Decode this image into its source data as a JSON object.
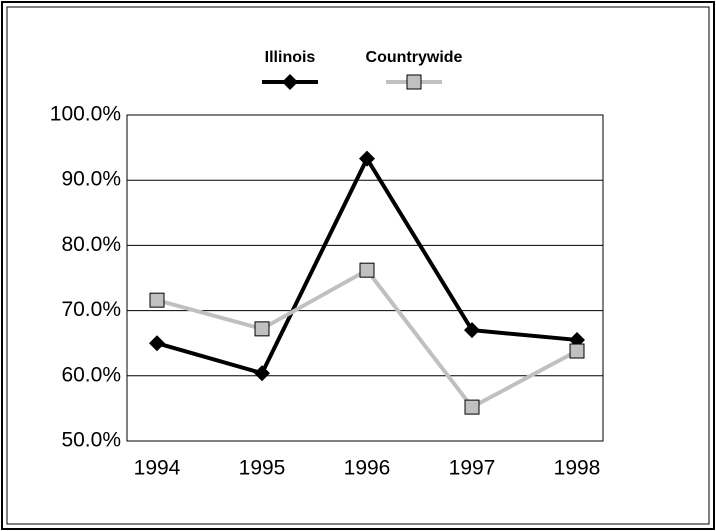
{
  "chart_data": {
    "type": "line",
    "categories": [
      "1994",
      "1995",
      "1996",
      "1997",
      "1998"
    ],
    "series": [
      {
        "name": "Illinois",
        "color": "#000000",
        "values": [
          65.0,
          60.4,
          93.3,
          67.0,
          65.5
        ]
      },
      {
        "name": "Countrywide",
        "color": "#c0c0c0",
        "values": [
          71.6,
          67.2,
          76.2,
          55.2,
          63.8
        ]
      }
    ],
    "ylim": [
      50,
      100
    ],
    "yticks": [
      {
        "value": 50,
        "label": "50.0%"
      },
      {
        "value": 60,
        "label": "60.0%"
      },
      {
        "value": 70,
        "label": "70.0%"
      },
      {
        "value": 80,
        "label": "80.0%"
      },
      {
        "value": 90,
        "label": "90.0%"
      },
      {
        "value": 100,
        "label": "100.0%"
      }
    ],
    "grid": true,
    "legend": "top"
  }
}
